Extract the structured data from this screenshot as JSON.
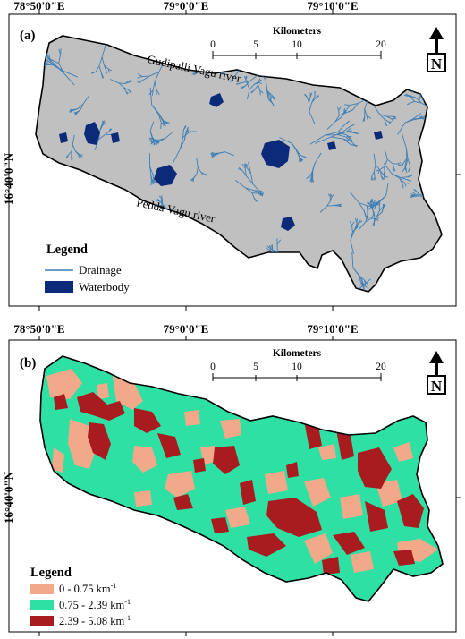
{
  "top_coords": [
    "78°50'0\"E",
    "79°0'0\"E",
    "79°10'0\"E"
  ],
  "mid_coords": [
    "78°50'0\"E",
    "79°0'0\"E",
    "79°10'0\"E"
  ],
  "lat_label": "16°40'0\"N",
  "panel_a": {
    "label": "(a)",
    "scale": {
      "title": "Kilometers",
      "ticks": [
        "0",
        "5",
        "10",
        "20"
      ]
    },
    "north": "N",
    "river_top": "Gudipalli Vagu river",
    "river_bottom": "Pedda Vagu river",
    "legend": {
      "title": "Legend",
      "items": [
        {
          "label": "Drainage",
          "color": "#3f7fb4"
        },
        {
          "label": "Waterbody",
          "color": "#0b2b7a"
        }
      ]
    }
  },
  "panel_b": {
    "label": "(b)",
    "scale": {
      "title": "Kilometers",
      "ticks": [
        "0",
        "5",
        "10",
        "20"
      ]
    },
    "north": "N",
    "legend": {
      "title": "Legend",
      "unit_base": "km",
      "unit_exp": "-1",
      "items": [
        {
          "range": "0 - 0.75",
          "color": "#f2a98a"
        },
        {
          "range": "0.75 - 2.39",
          "color": "#2ee0a4"
        },
        {
          "range": "2.39 - 5.08",
          "color": "#a81b1f"
        }
      ]
    }
  },
  "colors": {
    "land_gray": "#c0c0c0",
    "drainage": "#3f7fb4",
    "waterbody": "#0b2b7a",
    "low": "#f2a98a",
    "medium": "#2ee0a4",
    "high": "#a81b1f"
  }
}
